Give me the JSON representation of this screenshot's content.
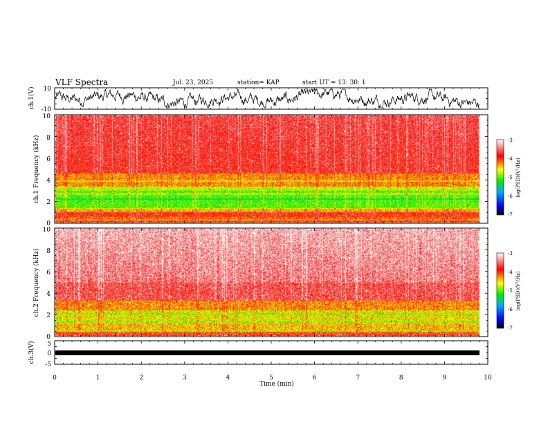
{
  "header": {
    "title": "VLF Spectra",
    "date": "Jul. 23, 2025",
    "station": "station= KAP",
    "start": "start  UT =   13: 30: 1"
  },
  "colors": {
    "trace": "#000000",
    "axis": "#000000",
    "scale": [
      "#000000",
      "#0000ff",
      "#00aaff",
      "#00ee00",
      "#ffff00",
      "#ff0000",
      "#ffffff"
    ]
  },
  "chart_data": [
    {
      "type": "line",
      "name": "ch1-waveform",
      "ylabel": "ch.1(V)",
      "ylim": [
        -10,
        10
      ],
      "yticks": [
        "10",
        "-10"
      ],
      "xlim": [
        0,
        10
      ]
    },
    {
      "type": "heatmap",
      "name": "ch1-spectrogram",
      "ylabel": "ch.1 Frequency (kHz)",
      "ylim": [
        0,
        10
      ],
      "yticks": [
        "0",
        "2",
        "4",
        "6",
        "8",
        "10"
      ],
      "xlim": [
        0,
        9.82
      ],
      "colorbar": {
        "label": "log(PSD)(V²/Hz)",
        "range": [
          -7,
          -3
        ],
        "ticks": [
          "-3",
          "-4",
          "-5",
          "-6",
          "-7"
        ]
      }
    },
    {
      "type": "heatmap",
      "name": "ch2-spectrogram",
      "ylabel": "ch.2 Frequency (kHz)",
      "ylim": [
        0,
        10
      ],
      "yticks": [
        "0",
        "2",
        "4",
        "6",
        "8",
        "10"
      ],
      "xlim": [
        0,
        9.82
      ],
      "colorbar": {
        "label": "log(PSD)(V²/Hz)",
        "range": [
          -7,
          -3
        ],
        "ticks": [
          "-3",
          "-4",
          "-5",
          "-6",
          "-7"
        ]
      }
    },
    {
      "type": "line",
      "name": "ch3-waveform",
      "ylabel": "ch.3(V)",
      "ylim": [
        -5,
        5
      ],
      "yticks": [
        "5",
        "0",
        "-5"
      ],
      "xlim": [
        0,
        10
      ]
    }
  ],
  "xaxis": {
    "label": "Time (min)",
    "ticks": [
      "0",
      "1",
      "2",
      "3",
      "4",
      "5",
      "6",
      "7",
      "8",
      "9",
      "10"
    ]
  }
}
